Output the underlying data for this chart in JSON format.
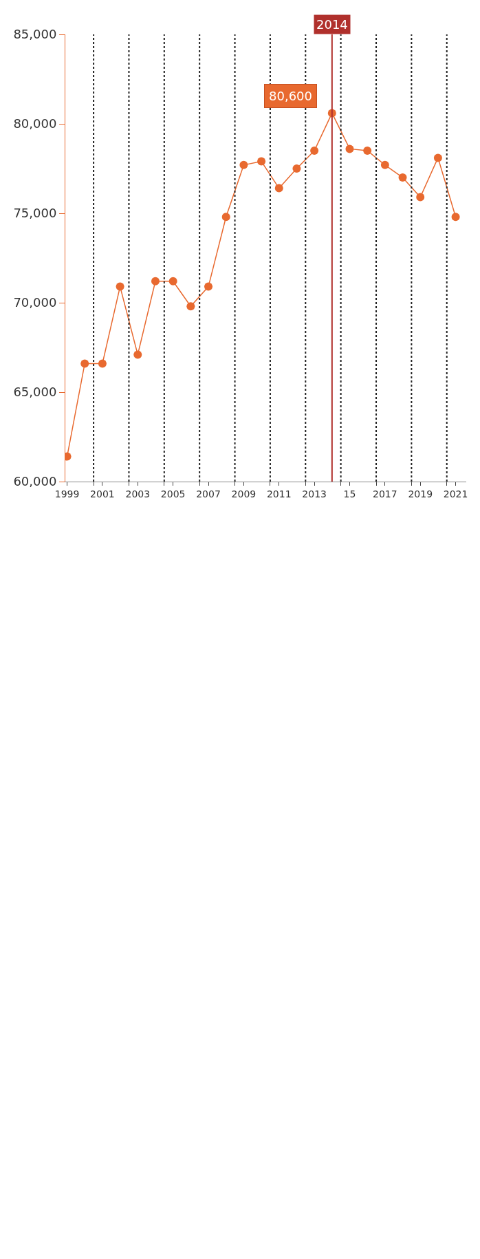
{
  "chart_data": {
    "type": "line",
    "x": [
      1999,
      2000,
      2001,
      2002,
      2003,
      2004,
      2005,
      2006,
      2007,
      2008,
      2009,
      2010,
      2011,
      2012,
      2013,
      2014,
      2015,
      2016,
      2017,
      2018,
      2019,
      2020,
      2021
    ],
    "series": [
      {
        "color": "#e8692f",
        "values": [
          61400,
          66600,
          66600,
          70900,
          67100,
          71200,
          71200,
          69800,
          70900,
          74800,
          77700,
          77900,
          76400,
          77500,
          78500,
          80600,
          78600,
          78500,
          77700,
          77000,
          75900,
          78100,
          74800
        ]
      }
    ],
    "xlim": [
      1998.9,
      2021.6
    ],
    "xticks": [
      1999,
      {
        "value": 2000.5,
        "label": null
      },
      2001,
      {
        "value": 2002.5,
        "label": null
      },
      2003,
      {
        "value": 2004.5,
        "label": null
      },
      2005,
      {
        "value": 2006.5,
        "label": null
      },
      2007,
      {
        "value": 2008.5,
        "label": null
      },
      2009,
      {
        "value": 2010.5,
        "label": null
      },
      2011,
      {
        "value": 2012.5,
        "label": null
      },
      2013,
      {
        "value": 2014.5,
        "label": null
      },
      {
        "value": 2015,
        "label": "15"
      },
      {
        "value": 2016.5,
        "label": null
      },
      2017,
      {
        "value": 2018.5,
        "label": null
      },
      2019,
      {
        "value": 2020.5,
        "label": null
      },
      2021
    ],
    "ylim": [
      60000,
      85000
    ],
    "yticks": [
      {
        "value": 60000,
        "label": "60,000"
      },
      {
        "value": 65000,
        "label": "65,000"
      },
      {
        "value": 70000,
        "label": "70,000"
      },
      {
        "value": 75000,
        "label": "75,000"
      },
      {
        "value": 80000,
        "label": "80,000"
      },
      {
        "value": 85000,
        "label": "85,000"
      }
    ],
    "grid": "x",
    "marker": "circle",
    "line_style": "solid",
    "legend": false,
    "ref_lines": [
      {
        "axis": "x",
        "value": 2014,
        "label": "2014",
        "color": "#b0302c"
      }
    ],
    "annotations": [
      {
        "text": "80,600",
        "x": 2014,
        "y": 80600
      }
    ]
  }
}
